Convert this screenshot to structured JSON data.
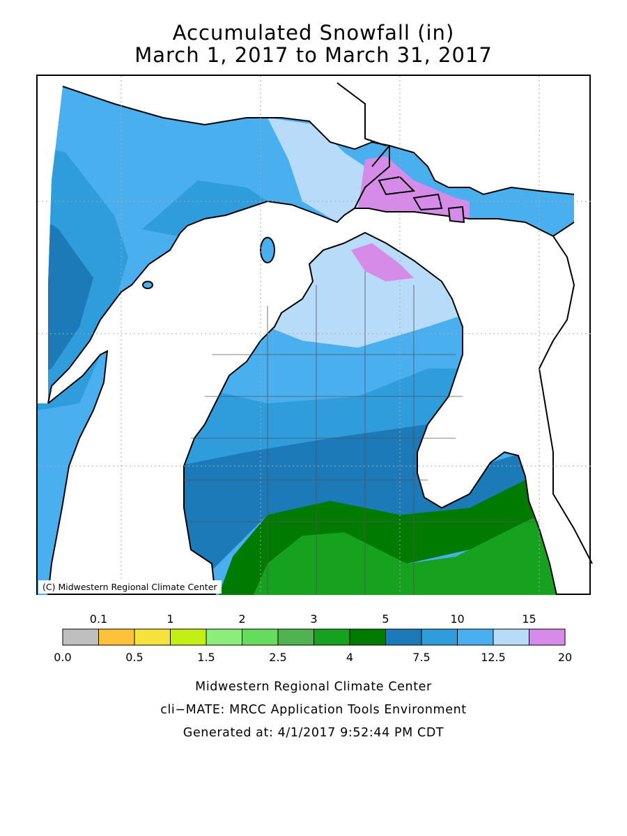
{
  "title": {
    "line1": "Accumulated Snowfall (in)",
    "line2": "March 1, 2017 to March 31, 2017"
  },
  "map": {
    "region": "Michigan",
    "copyright": "(C) Midwestern Regional Climate Center",
    "colors": {
      "water": "#ffffff",
      "boundary": "#000000",
      "county_line": "#555555",
      "grid": "#aaaaaa"
    }
  },
  "legend": {
    "bins": [
      {
        "range": "0.0–0.1",
        "color": "#bfbfbf"
      },
      {
        "range": "0.1–0.5",
        "color": "#fcc23a"
      },
      {
        "range": "0.5–1",
        "color": "#f5e23c"
      },
      {
        "range": "1–1.5",
        "color": "#c4ef14"
      },
      {
        "range": "1.5–2",
        "color": "#8cee7a"
      },
      {
        "range": "2–2.5",
        "color": "#66dc5c"
      },
      {
        "range": "2.5–3",
        "color": "#4fb34f"
      },
      {
        "range": "3–4",
        "color": "#16a11e"
      },
      {
        "range": "4–5",
        "color": "#007b00"
      },
      {
        "range": "5–7.5",
        "color": "#1c7ab8"
      },
      {
        "range": "7.5–10",
        "color": "#2f9cdc"
      },
      {
        "range": "10–12.5",
        "color": "#4aafee"
      },
      {
        "range": "12.5–15",
        "color": "#b7dbf8"
      },
      {
        "range": "15–20",
        "color": "#d78be9"
      }
    ],
    "top_labels": [
      "0.1",
      "1",
      "2",
      "3",
      "5",
      "10",
      "15"
    ],
    "bottom_labels": [
      "0.0",
      "0.5",
      "1.5",
      "2.5",
      "4",
      "7.5",
      "12.5",
      "20"
    ]
  },
  "footer": {
    "line1": "Midwestern Regional Climate Center",
    "line2": "cli−MATE: MRCC Application Tools Environment",
    "line3": "Generated at: 4/1/2017 9:52:44 PM CDT"
  }
}
